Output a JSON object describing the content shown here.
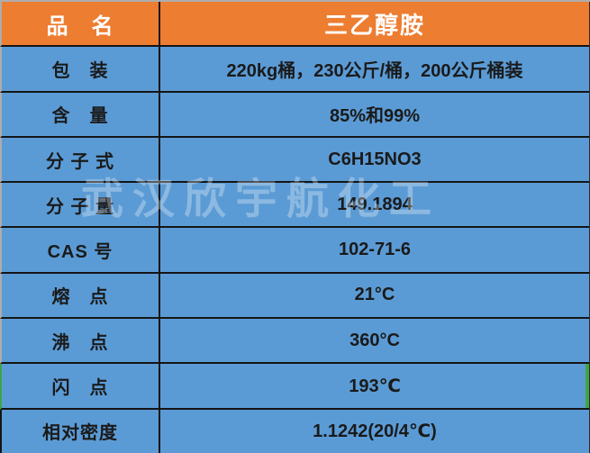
{
  "table": {
    "header": {
      "label": "品　名",
      "value": "三乙醇胺"
    },
    "rows": [
      {
        "label": "包　装",
        "value": "220kg桶，230公斤/桶，200公斤桶装"
      },
      {
        "label": "含　量",
        "value": "85%和99%"
      },
      {
        "label": "分 子 式",
        "value": "C6H15NO3"
      },
      {
        "label": "分 子 量",
        "value": "149.1894"
      },
      {
        "label": "CAS 号",
        "value": "102-71-6"
      },
      {
        "label": "熔　点",
        "value": "21°C"
      },
      {
        "label": "沸　点",
        "value": "360°C"
      },
      {
        "label": "闪　点",
        "value": "193℃",
        "highlighted": true
      },
      {
        "label": "相对密度",
        "value": "1.1242(20/4℃)"
      }
    ],
    "watermark": "武汉欣宇航化工",
    "colors": {
      "header_bg": "#ED7D31",
      "row_bg": "#5B9BD5",
      "gridline": "#151515",
      "outer_edge": "#ADADAD",
      "highlight_border": "#3FA546",
      "header_text": "#FFFFFF",
      "cell_text": "#1A1A1A",
      "watermark_text": "rgba(255,255,255,0.30)"
    }
  }
}
